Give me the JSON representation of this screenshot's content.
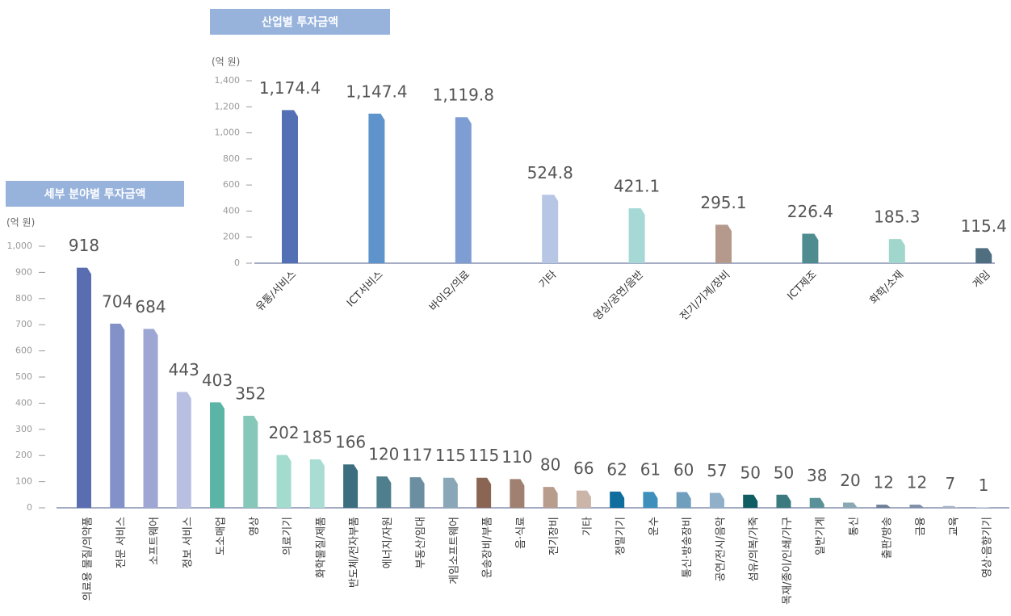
{
  "chart_data": [
    {
      "type": "bar",
      "title": "산업별 투자금액",
      "ylabel": "(억 원)",
      "categories": [
        "유통/서비스",
        "ICT서비스",
        "바이오/의료",
        "기타",
        "영상/공연/음반",
        "전기/기계/장비",
        "ICT제조",
        "화학/소재",
        "게임"
      ],
      "values": [
        1174.4,
        1147.4,
        1119.8,
        524.8,
        421.1,
        295.1,
        226.4,
        185.3,
        115.4
      ],
      "value_labels": [
        "1,174.4",
        "1,147.4",
        "1,119.8",
        "524.8",
        "421.1",
        "295.1",
        "226.4",
        "185.3",
        "115.4"
      ],
      "colors": [
        "#5470b5",
        "#5f93cc",
        "#7e9dd3",
        "#b8c6e6",
        "#a6d8d6",
        "#b4998c",
        "#4e8c8f",
        "#a1d6cd",
        "#4f6e80"
      ],
      "ylim": [
        0,
        1400
      ],
      "yticks": [
        0,
        200,
        400,
        600,
        800,
        {
          "value": 1000,
          "label": "1,000"
        },
        {
          "value": 1200,
          "label": "1,200"
        },
        {
          "value": 1400,
          "label": "1,400"
        }
      ]
    },
    {
      "type": "bar",
      "title": "세부 분야별 투자금액",
      "ylabel": "(억 원)",
      "categories": [
        "의료용 물질/의약품",
        "전문 서비스",
        "소프트웨어",
        "정보 서비스",
        "도소매업",
        "영상",
        "의료기기",
        "화학물질/제품",
        "반도체/전자부품",
        "에너지/자원",
        "부동산/임대",
        "게임소프트웨어",
        "운송장비/부품",
        "음·식료",
        "전기장비",
        "기타",
        "정밀기기",
        "운수",
        "통신·방송장비",
        "공연/전시/음악",
        "섬유/의복/가죽",
        "목재/종이/인쇄/가구",
        "일반기계",
        "통신",
        "출판/방송",
        "금융",
        "교육",
        "영상·음향기기"
      ],
      "values": [
        918,
        704,
        684,
        443,
        403,
        352,
        202,
        185,
        166,
        120,
        117,
        115,
        115,
        110,
        80,
        66,
        62,
        61,
        60,
        57,
        50,
        50,
        38,
        20,
        12,
        12,
        7,
        1
      ],
      "colors": [
        "#5a6db0",
        "#8292c8",
        "#9ea7d3",
        "#b8bfe0",
        "#5ab5a6",
        "#85c7b9",
        "#a3dbcf",
        "#a9dcd3",
        "#3d6e7f",
        "#4f7f8d",
        "#6b8fa0",
        "#8aa7b8",
        "#8a6553",
        "#a08070",
        "#b89c8c",
        "#cbb4a8",
        "#0f6e9e",
        "#3f8fbd",
        "#6f9fbd",
        "#8fb0c8",
        "#0f5e63",
        "#3b7b80",
        "#5a9198",
        "#8aa8b4",
        "#6e7f99",
        "#7f8fa8",
        "#a5b2c5",
        "#c0c8d6"
      ],
      "ylim": [
        0,
        1000
      ],
      "yticks": [
        0,
        100,
        200,
        300,
        400,
        500,
        600,
        700,
        800,
        900,
        {
          "value": 1000,
          "label": "1,000"
        }
      ]
    }
  ]
}
